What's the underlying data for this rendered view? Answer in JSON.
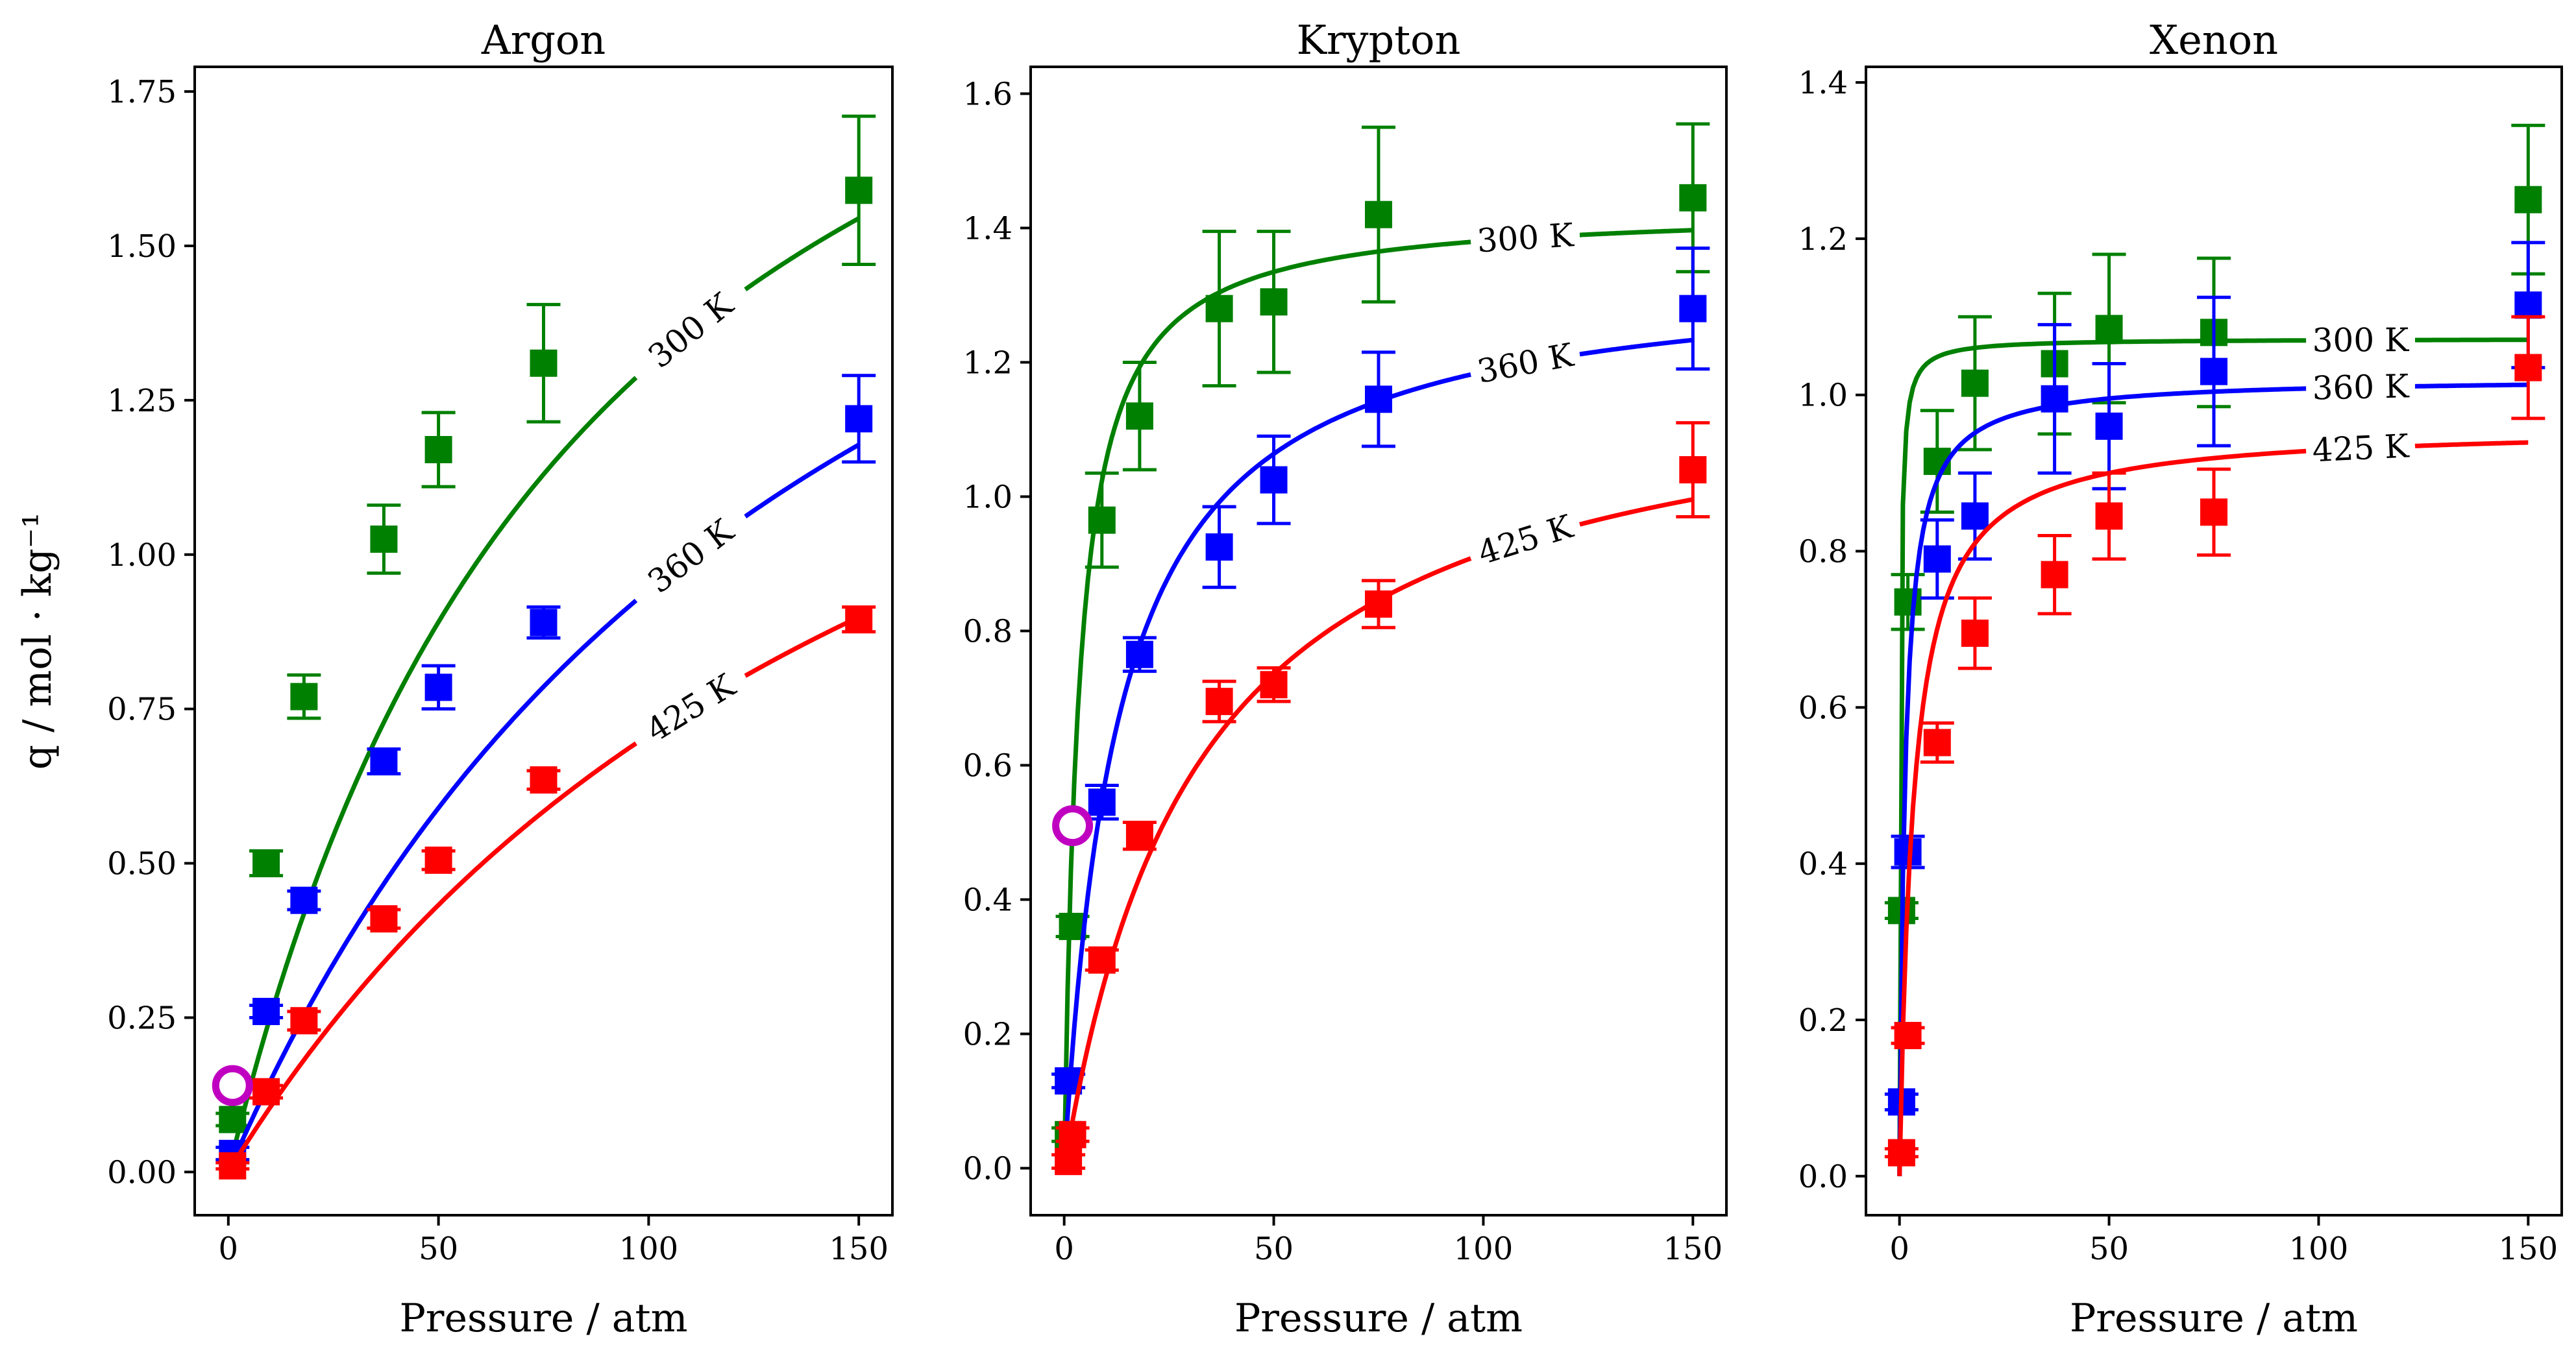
{
  "chart_data": [
    {
      "type": "scatter",
      "title": "Argon",
      "xlabel": "Pressure / atm",
      "ylabel": "q / mol · kg⁻¹",
      "xlim": [
        -8,
        158
      ],
      "ylim": [
        -0.07,
        1.79
      ],
      "xticks": [
        0,
        50,
        100,
        150
      ],
      "yticks": [
        0,
        0.25,
        0.5,
        0.75,
        1.0,
        1.25,
        1.5,
        1.75
      ],
      "ytick_labels": [
        "0.00",
        "0.25",
        "0.50",
        "0.75",
        "1.00",
        "1.25",
        "1.50",
        "1.75"
      ],
      "series": [
        {
          "name": "300 K",
          "color": "#008000",
          "label_x": 110,
          "x": [
            1,
            9,
            18,
            37,
            50,
            75,
            150
          ],
          "y": [
            0.085,
            0.5,
            0.77,
            1.025,
            1.17,
            1.31,
            1.59
          ],
          "err": [
            0.01,
            0.02,
            0.035,
            0.055,
            0.06,
            0.095,
            0.12
          ],
          "fit": {
            "qmax": 2.44,
            "b": 0.0115
          }
        },
        {
          "name": "360 K",
          "color": "#0000ff",
          "label_x": 110,
          "x": [
            1,
            9,
            18,
            37,
            50,
            75,
            150
          ],
          "y": [
            0.03,
            0.26,
            0.44,
            0.665,
            0.785,
            0.89,
            1.22
          ],
          "err": [
            0.01,
            0.01,
            0.015,
            0.02,
            0.035,
            0.025,
            0.07
          ],
          "fit": {
            "qmax": 2.35,
            "b": 0.0067
          }
        },
        {
          "name": "425 K",
          "color": "#ff0000",
          "label_x": 110,
          "x": [
            1,
            9,
            18,
            37,
            50,
            75,
            150
          ],
          "y": [
            0.01,
            0.13,
            0.245,
            0.41,
            0.505,
            0.635,
            0.895
          ],
          "err": [
            0.005,
            0.01,
            0.015,
            0.015,
            0.015,
            0.015,
            0.02
          ],
          "fit": {
            "qmax": 1.95,
            "b": 0.0057
          }
        }
      ],
      "marker": {
        "x": 1,
        "y": 0.14,
        "color": "#c000c0"
      }
    },
    {
      "type": "scatter",
      "title": "Krypton",
      "xlabel": "Pressure / atm",
      "ylabel": "",
      "xlim": [
        -8,
        158
      ],
      "ylim": [
        -0.07,
        1.64
      ],
      "xticks": [
        0,
        50,
        100,
        150
      ],
      "yticks": [
        0,
        0.2,
        0.4,
        0.6,
        0.8,
        1.0,
        1.2,
        1.4,
        1.6
      ],
      "ytick_labels": [
        "0.0",
        "0.2",
        "0.4",
        "0.6",
        "0.8",
        "1.0",
        "1.2",
        "1.4",
        "1.6"
      ],
      "series": [
        {
          "name": "300 K",
          "color": "#008000",
          "label_x": 110,
          "x": [
            1,
            2,
            9,
            18,
            37,
            50,
            75,
            150
          ],
          "y": [
            0.05,
            0.36,
            0.965,
            1.12,
            1.28,
            1.29,
            1.42,
            1.445
          ],
          "err": [
            0.01,
            0.015,
            0.07,
            0.08,
            0.115,
            0.105,
            0.13,
            0.11
          ],
          "fit": {
            "qmax": 1.43,
            "b": 0.28
          }
        },
        {
          "name": "360 K",
          "color": "#0000ff",
          "label_x": 110,
          "x": [
            1,
            9,
            18,
            37,
            50,
            75,
            150
          ],
          "y": [
            0.13,
            0.545,
            0.765,
            0.925,
            1.025,
            1.145,
            1.28
          ],
          "err": [
            0.01,
            0.025,
            0.025,
            0.06,
            0.065,
            0.07,
            0.09
          ],
          "fit": {
            "qmax": 1.34,
            "b": 0.077
          }
        },
        {
          "name": "425 K",
          "color": "#ff0000",
          "label_x": 110,
          "x": [
            1,
            2,
            9,
            18,
            37,
            50,
            75,
            150
          ],
          "y": [
            0.01,
            0.05,
            0.31,
            0.495,
            0.695,
            0.72,
            0.84,
            1.04
          ],
          "err": [
            0.01,
            0.01,
            0.015,
            0.02,
            0.03,
            0.025,
            0.035,
            0.07
          ],
          "fit": {
            "qmax": 1.21,
            "b": 0.031
          }
        }
      ],
      "marker": {
        "x": 2,
        "y": 0.51,
        "color": "#c000c0"
      }
    },
    {
      "type": "scatter",
      "title": "Xenon",
      "xlabel": "Pressure / atm",
      "ylabel": "",
      "xlim": [
        -8,
        158
      ],
      "ylim": [
        -0.05,
        1.42
      ],
      "xticks": [
        0,
        50,
        100,
        150
      ],
      "yticks": [
        0,
        0.2,
        0.4,
        0.6,
        0.8,
        1.0,
        1.2,
        1.4
      ],
      "ytick_labels": [
        "0.0",
        "0.2",
        "0.4",
        "0.6",
        "0.8",
        "1.0",
        "1.2",
        "1.4"
      ],
      "series": [
        {
          "name": "300 K",
          "color": "#008000",
          "label_x": 110,
          "x": [
            0.5,
            2,
            9,
            18,
            37,
            50,
            75,
            150
          ],
          "y": [
            0.34,
            0.735,
            0.915,
            1.015,
            1.04,
            1.085,
            1.08,
            1.25
          ],
          "err": [
            0.01,
            0.035,
            0.065,
            0.085,
            0.09,
            0.095,
            0.095,
            0.095
          ],
          "fit": {
            "qmax": 1.072,
            "b": 5.0
          }
        },
        {
          "name": "360 K",
          "color": "#0000ff",
          "label_x": 110,
          "x": [
            0.5,
            2,
            9,
            18,
            37,
            50,
            75,
            150
          ],
          "y": [
            0.095,
            0.415,
            0.79,
            0.845,
            0.995,
            0.96,
            1.03,
            1.115
          ],
          "err": [
            0.01,
            0.02,
            0.05,
            0.055,
            0.095,
            0.08,
            0.095,
            0.08
          ],
          "fit": {
            "qmax": 1.022,
            "b": 0.75
          }
        },
        {
          "name": "425 K",
          "color": "#ff0000",
          "label_x": 110,
          "x": [
            0.5,
            2,
            9,
            18,
            37,
            50,
            75,
            150
          ],
          "y": [
            0.03,
            0.18,
            0.555,
            0.695,
            0.77,
            0.845,
            0.85,
            1.035
          ],
          "err": [
            0.005,
            0.01,
            0.025,
            0.045,
            0.05,
            0.055,
            0.055,
            0.065
          ],
          "fit": {
            "qmax": 0.96,
            "b": 0.3
          }
        }
      ],
      "marker": null
    }
  ]
}
